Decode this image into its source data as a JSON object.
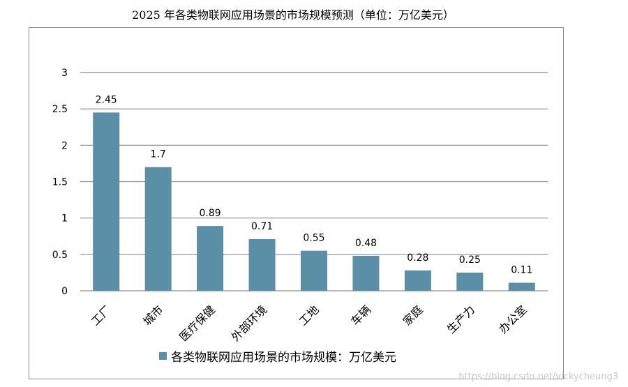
{
  "title": "2025 年各类物联网应用场景的市场规模预测（单位：万亿美元）",
  "watermark": "https://blog.csdn.net/vickycheung3",
  "colors": {
    "bar": "#5b8fa8",
    "grid": "#8c8c8c"
  },
  "chart_data": {
    "type": "bar",
    "categories": [
      "工厂",
      "城市",
      "医疗保健",
      "外部环境",
      "工地",
      "车辆",
      "家庭",
      "生产力",
      "办公室"
    ],
    "series": [
      {
        "name": "各类物联网应用场景的市场规模：万亿美元",
        "values": [
          2.45,
          1.7,
          0.89,
          0.71,
          0.55,
          0.48,
          0.28,
          0.25,
          0.11
        ]
      }
    ],
    "data_labels": [
      "2.45",
      "1.7",
      "0.89",
      "0.71",
      "0.55",
      "0.48",
      "0.28",
      "0.25",
      "0.11"
    ],
    "yticks": [
      "0",
      "0.5",
      "1",
      "1.5",
      "2",
      "2.5",
      "3"
    ],
    "ylim": [
      0,
      3
    ],
    "grid": true,
    "legend": "bottom"
  }
}
